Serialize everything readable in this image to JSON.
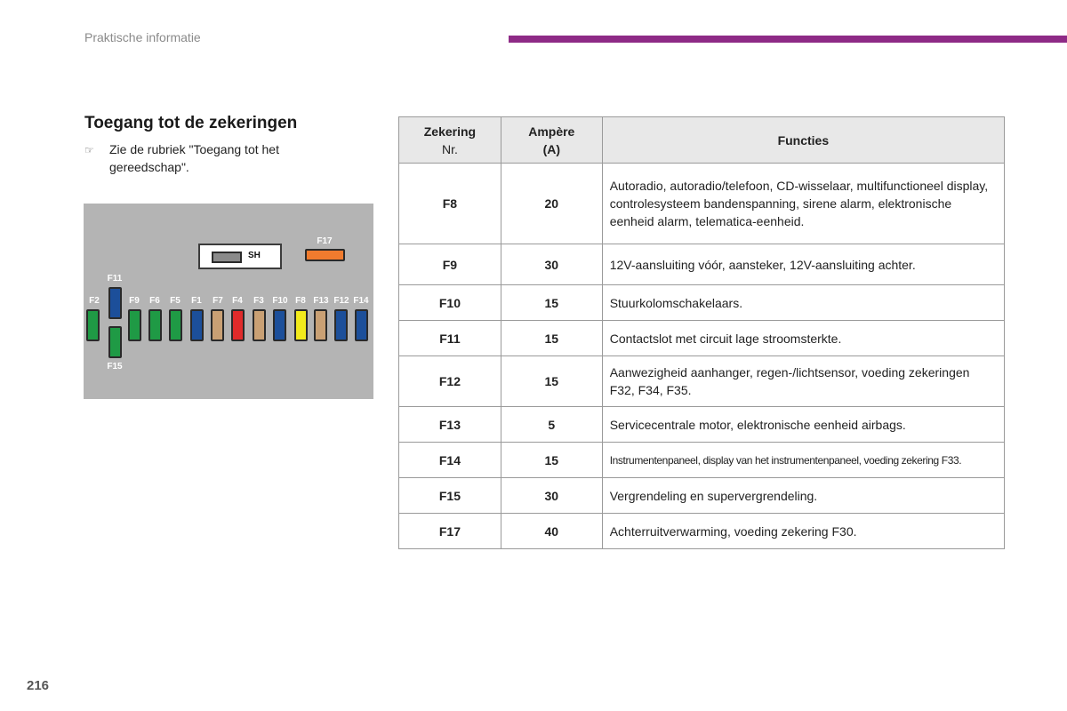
{
  "header": {
    "running_title": "Praktische informatie",
    "accent_color": "#8e2a86"
  },
  "section": {
    "title": "Toegang tot de zekeringen",
    "instruction_bullet": "☞",
    "instruction_text": "Zie de rubriek \"Toegang tot het gereedschap\"."
  },
  "fuse_diagram": {
    "background_color": "#b4b4b4",
    "sh_label": "SH",
    "top_fuse": {
      "label": "F17",
      "color": "#f07b2e"
    },
    "fuses": [
      {
        "label": "F2",
        "color": "#1f9a45"
      },
      {
        "label": "F11",
        "color": "#1c4f9a"
      },
      {
        "label": "F15",
        "color": "#1f9a45"
      },
      {
        "label": "F9",
        "color": "#1f9a45"
      },
      {
        "label": "F6",
        "color": "#1f9a45"
      },
      {
        "label": "F5",
        "color": "#1f9a45"
      },
      {
        "label": "F1",
        "color": "#1c4f9a"
      },
      {
        "label": "F7",
        "color": "#c9a074"
      },
      {
        "label": "F4",
        "color": "#e02a2a"
      },
      {
        "label": "F3",
        "color": "#c9a074"
      },
      {
        "label": "F10",
        "color": "#1c4f9a"
      },
      {
        "label": "F8",
        "color": "#f2ea1c"
      },
      {
        "label": "F13",
        "color": "#c9a074"
      },
      {
        "label": "F12",
        "color": "#1c4f9a"
      },
      {
        "label": "F14",
        "color": "#1c4f9a"
      }
    ]
  },
  "table": {
    "headers": {
      "fuse_line1": "Zekering",
      "fuse_line2": "Nr.",
      "amp_line1": "Ampère",
      "amp_line2": "(A)",
      "functions": "Functies"
    },
    "rows": [
      {
        "fuse": "F8",
        "amp": "20",
        "function": "Autoradio, autoradio/telefoon, CD-wisselaar, multifunctioneel display, controlesysteem bandenspanning, sirene alarm, elektronische eenheid alarm, telematica-eenheid."
      },
      {
        "fuse": "F9",
        "amp": "30",
        "function": "12V-aansluiting vóór, aansteker, 12V-aansluiting achter."
      },
      {
        "fuse": "F10",
        "amp": "15",
        "function": "Stuurkolomschakelaars."
      },
      {
        "fuse": "F11",
        "amp": "15",
        "function": "Contactslot met circuit lage stroomsterkte."
      },
      {
        "fuse": "F12",
        "amp": "15",
        "function": "Aanwezigheid aanhanger, regen-/lichtsensor, voeding zekeringen F32, F34, F35."
      },
      {
        "fuse": "F13",
        "amp": "5",
        "function": "Servicecentrale motor, elektronische eenheid airbags."
      },
      {
        "fuse": "F14",
        "amp": "15",
        "function": "Instrumentenpaneel, display van het instrumentenpaneel, voeding zekering F33."
      },
      {
        "fuse": "F15",
        "amp": "30",
        "function": "Vergrendeling en supervergrendeling."
      },
      {
        "fuse": "F17",
        "amp": "40",
        "function": "Achterruitverwarming, voeding zekering F30."
      }
    ]
  },
  "footer": {
    "page_number": "216"
  }
}
